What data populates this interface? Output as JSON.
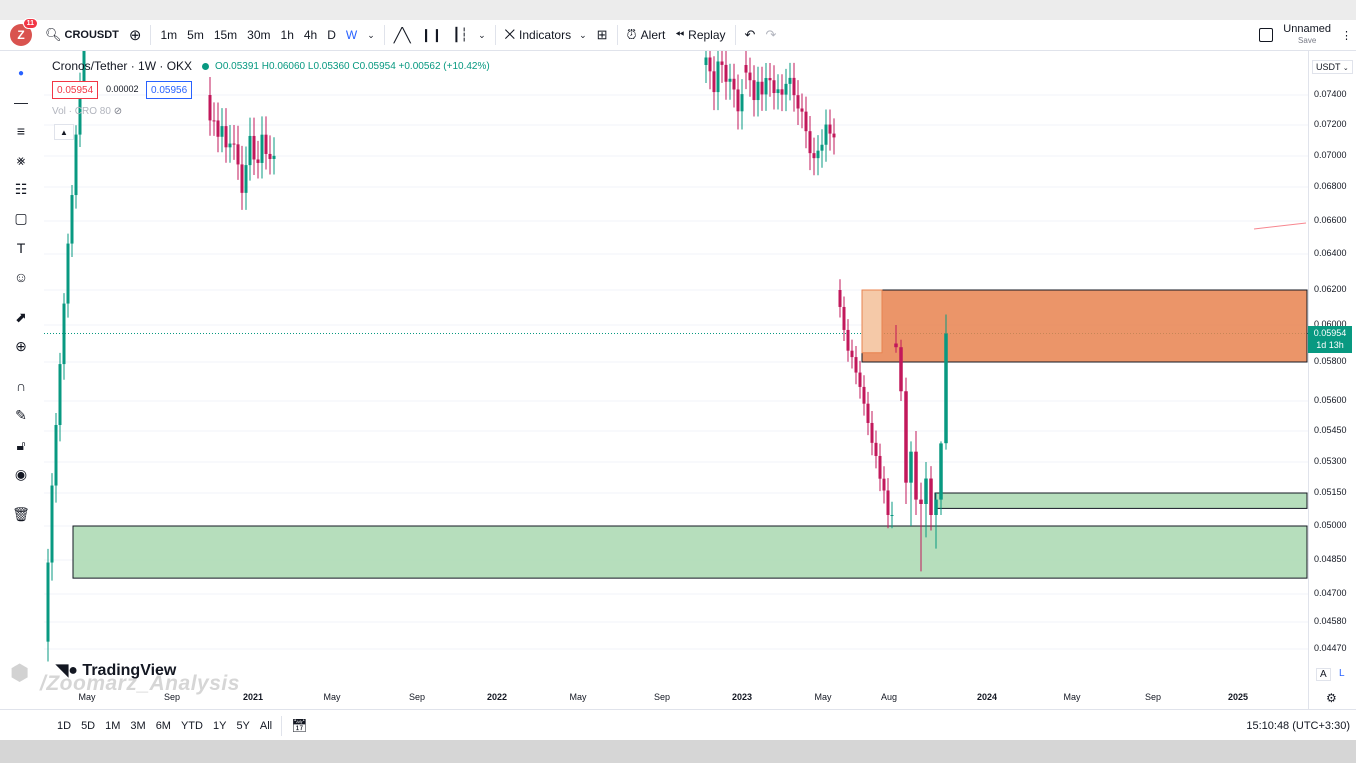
{
  "toolbar": {
    "avatar_letter": "Z",
    "notification_count": "11",
    "symbol": "CROUSDT",
    "intervals": [
      "1m",
      "5m",
      "15m",
      "30m",
      "1h",
      "4h",
      "D",
      "W"
    ],
    "active_interval": "W",
    "indicators_label": "Indicators",
    "alert_label": "Alert",
    "replay_label": "Replay",
    "layout_name": "Unnamed",
    "layout_save": "Save"
  },
  "legend": {
    "title": "Cronos/Tether · 1W · OKX",
    "ohlc": "O0.05391 H0.06060 L0.05360 C0.05954 +0.00562 (+10.42%)",
    "bid": "0.05954",
    "spread": "0.00002",
    "ask": "0.05956",
    "volume": "Vol · CRO 80"
  },
  "price_axis": {
    "currency": "USDT",
    "current_price": "0.05954",
    "countdown": "1d 13h",
    "ticks": [
      "0.07400",
      "0.07200",
      "0.07000",
      "0.06800",
      "0.06600",
      "0.06400",
      "0.06200",
      "0.06000",
      "0.05800",
      "0.05600",
      "0.05450",
      "0.05300",
      "0.05150",
      "0.05000",
      "0.04850",
      "0.04700",
      "0.04580",
      "0.04470"
    ],
    "auto_label": "A",
    "log_label": "L"
  },
  "time_axis": {
    "ticks": [
      "May",
      "Sep",
      "2021",
      "May",
      "Sep",
      "2022",
      "May",
      "Sep",
      "2023",
      "May",
      "Aug",
      "2024",
      "May",
      "Sep",
      "2025"
    ]
  },
  "bottombar": {
    "ranges": [
      "1D",
      "5D",
      "1M",
      "3M",
      "6M",
      "YTD",
      "1Y",
      "5Y",
      "All"
    ],
    "clock": "15:10:48 (UTC+3:30)"
  },
  "watermark": {
    "brand": "TradingView",
    "author": "/Zoomarz_Analysis"
  },
  "colors": {
    "up": "#089981",
    "down": "#c2185b",
    "supply_zone": "#e8834f",
    "demand_zone": "#a9d8b0"
  },
  "chart_data": {
    "type": "candlestick",
    "symbol": "CROUSDT",
    "timeframe": "1W",
    "exchange": "OKX",
    "last": {
      "open": 0.05391,
      "high": 0.0606,
      "low": 0.0536,
      "close": 0.05954
    },
    "zones": [
      {
        "kind": "supply",
        "from_price": 0.058,
        "to_price": 0.062
      },
      {
        "kind": "demand",
        "from_price": 0.0508,
        "to_price": 0.0515
      },
      {
        "kind": "demand",
        "from_price": 0.0477,
        "to_price": 0.05
      }
    ],
    "candles_recent": [
      {
        "o": 0.059,
        "h": 0.06,
        "l": 0.0585,
        "c": 0.0588
      },
      {
        "o": 0.0588,
        "h": 0.0592,
        "l": 0.056,
        "c": 0.0565
      },
      {
        "o": 0.0565,
        "h": 0.0572,
        "l": 0.051,
        "c": 0.052
      },
      {
        "o": 0.052,
        "h": 0.054,
        "l": 0.05,
        "c": 0.0535
      },
      {
        "o": 0.0535,
        "h": 0.0545,
        "l": 0.0505,
        "c": 0.0512
      },
      {
        "o": 0.0512,
        "h": 0.052,
        "l": 0.048,
        "c": 0.051
      },
      {
        "o": 0.051,
        "h": 0.053,
        "l": 0.0495,
        "c": 0.0522
      },
      {
        "o": 0.0522,
        "h": 0.0528,
        "l": 0.0498,
        "c": 0.0505
      },
      {
        "o": 0.0505,
        "h": 0.0515,
        "l": 0.049,
        "c": 0.0512
      },
      {
        "o": 0.0512,
        "h": 0.054,
        "l": 0.0505,
        "c": 0.0539
      },
      {
        "o": 0.05391,
        "h": 0.0606,
        "l": 0.0536,
        "c": 0.05954
      }
    ]
  }
}
